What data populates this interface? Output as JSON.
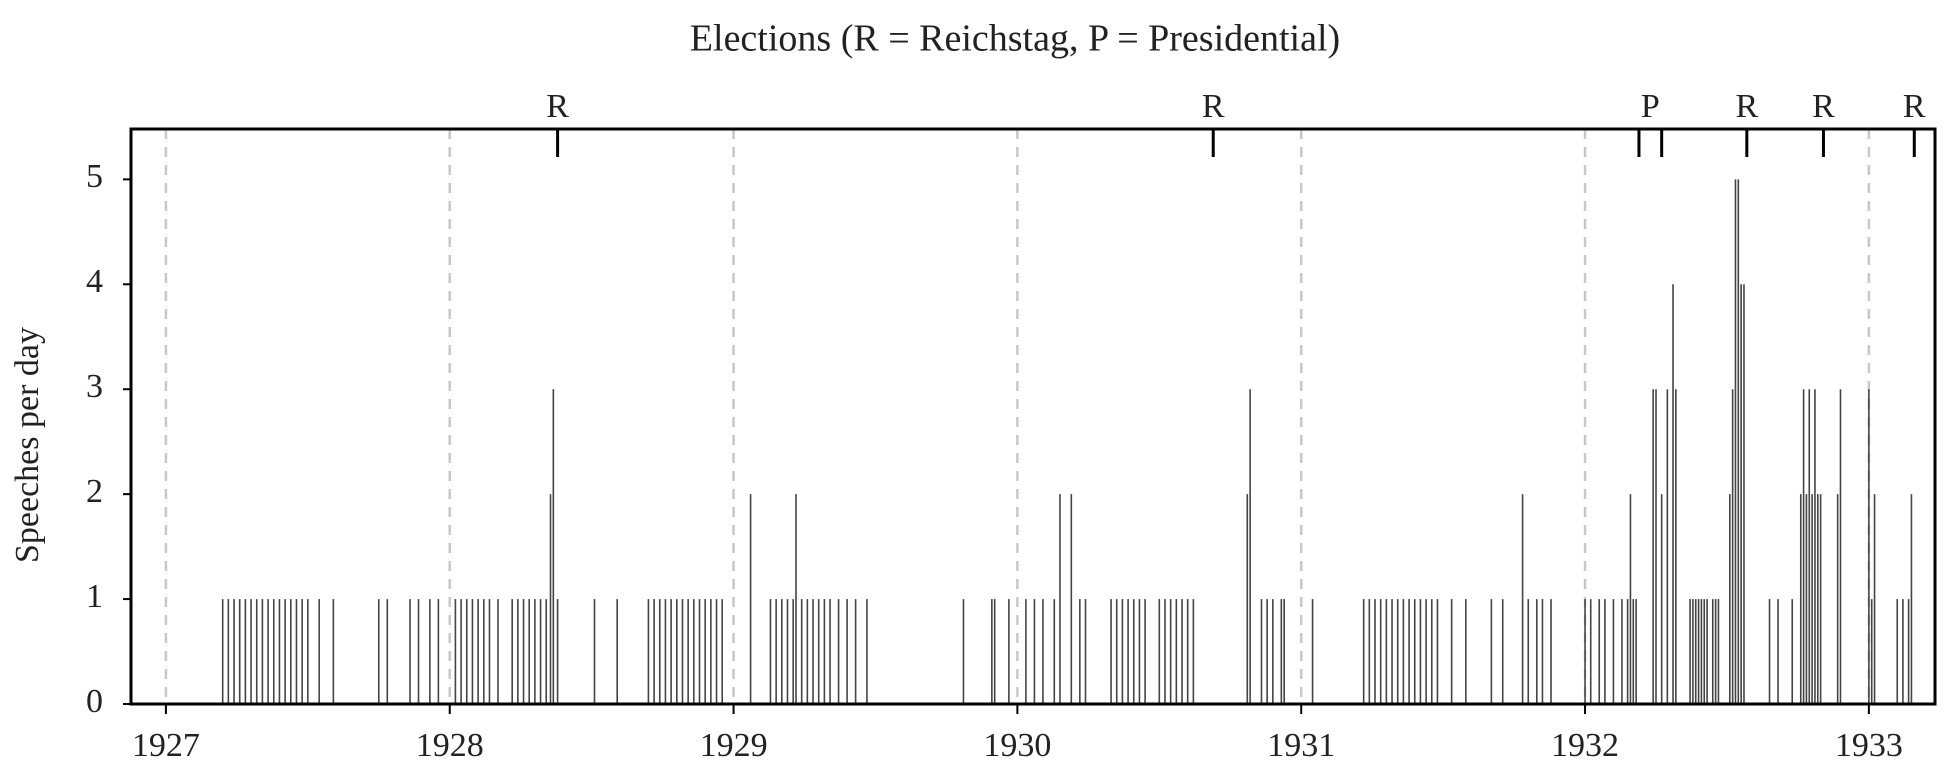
{
  "chart_data": {
    "type": "spike",
    "title": "Elections (R = Reichstag, P = Presidential)",
    "y_label": "Speeches per day",
    "color": "#444444",
    "grid": true,
    "xlim": [
      1926.877,
      1933.233
    ],
    "ylim": [
      0,
      5.48
    ],
    "xticks": [
      1927,
      1928,
      1929,
      1930,
      1931,
      1932,
      1933
    ],
    "yticks": [
      0,
      1,
      2,
      3,
      4,
      5
    ],
    "elections": [
      {
        "label": "R",
        "x": [
          1928.38
        ]
      },
      {
        "label": "R",
        "x": [
          1930.69
        ]
      },
      {
        "label": "P",
        "x": [
          1932.19,
          1932.27
        ]
      },
      {
        "label": "R",
        "x": [
          1932.57
        ]
      },
      {
        "label": "R",
        "x": [
          1932.84
        ]
      },
      {
        "label": "R",
        "x": [
          1933.16
        ]
      }
    ],
    "x": [
      1927.2,
      1927.22,
      1927.24,
      1927.26,
      1927.28,
      1927.3,
      1927.32,
      1927.34,
      1927.36,
      1927.38,
      1927.4,
      1927.42,
      1927.44,
      1927.46,
      1927.48,
      1927.5,
      1927.54,
      1927.59,
      1927.75,
      1927.78,
      1927.86,
      1927.89,
      1927.93,
      1927.96,
      1928.02,
      1928.04,
      1928.06,
      1928.08,
      1928.1,
      1928.12,
      1928.14,
      1928.17,
      1928.22,
      1928.24,
      1928.26,
      1928.28,
      1928.3,
      1928.32,
      1928.34,
      1928.355,
      1928.365,
      1928.38,
      1928.51,
      1928.59,
      1928.7,
      1928.72,
      1928.74,
      1928.76,
      1928.78,
      1928.8,
      1928.82,
      1928.84,
      1928.86,
      1928.88,
      1928.9,
      1928.92,
      1928.94,
      1928.96,
      1929.06,
      1929.13,
      1929.15,
      1929.17,
      1929.19,
      1929.21,
      1929.22,
      1929.24,
      1929.26,
      1929.28,
      1929.3,
      1929.32,
      1929.34,
      1929.37,
      1929.4,
      1929.43,
      1929.47,
      1929.81,
      1929.91,
      1929.92,
      1929.97,
      1930.03,
      1930.06,
      1930.09,
      1930.13,
      1930.15,
      1930.19,
      1930.22,
      1930.24,
      1930.33,
      1930.35,
      1930.37,
      1930.39,
      1930.41,
      1930.43,
      1930.45,
      1930.5,
      1930.52,
      1930.54,
      1930.56,
      1930.58,
      1930.6,
      1930.62,
      1930.81,
      1930.82,
      1930.86,
      1930.88,
      1930.9,
      1930.93,
      1930.94,
      1931.04,
      1931.22,
      1931.24,
      1931.26,
      1931.28,
      1931.3,
      1931.32,
      1931.34,
      1931.36,
      1931.38,
      1931.4,
      1931.42,
      1931.44,
      1931.46,
      1931.48,
      1931.53,
      1931.58,
      1931.67,
      1931.71,
      1931.78,
      1931.8,
      1931.83,
      1931.85,
      1931.88,
      1932,
      1932.02,
      1932.05,
      1932.07,
      1932.1,
      1932.13,
      1932.15,
      1932.16,
      1932.17,
      1932.18,
      1932.24,
      1932.25,
      1932.27,
      1932.29,
      1932.31,
      1932.32,
      1932.37,
      1932.38,
      1932.39,
      1932.4,
      1932.41,
      1932.42,
      1932.43,
      1932.45,
      1932.46,
      1932.47,
      1932.51,
      1932.52,
      1932.53,
      1932.54,
      1932.55,
      1932.56,
      1932.65,
      1932.68,
      1932.73,
      1932.76,
      1932.77,
      1932.78,
      1932.79,
      1932.8,
      1932.81,
      1932.82,
      1932.83,
      1932.89,
      1932.9,
      1933,
      1933.01,
      1933.02,
      1933.1,
      1933.12,
      1933.14,
      1933.15
    ],
    "values": [
      1,
      1,
      1,
      1,
      1,
      1,
      1,
      1,
      1,
      1,
      1,
      1,
      1,
      1,
      1,
      1,
      1,
      1,
      1,
      1,
      1,
      1,
      1,
      1,
      1,
      1,
      1,
      1,
      1,
      1,
      1,
      1,
      1,
      1,
      1,
      1,
      1,
      1,
      1,
      2,
      3,
      1,
      1,
      1,
      1,
      1,
      1,
      1,
      1,
      1,
      1,
      1,
      1,
      1,
      1,
      1,
      1,
      1,
      2,
      1,
      1,
      1,
      1,
      1,
      2,
      1,
      1,
      1,
      1,
      1,
      1,
      1,
      1,
      1,
      1,
      1,
      1,
      1,
      1,
      1,
      1,
      1,
      1,
      2,
      2,
      1,
      1,
      1,
      1,
      1,
      1,
      1,
      1,
      1,
      1,
      1,
      1,
      1,
      1,
      1,
      1,
      2,
      3,
      1,
      1,
      1,
      1,
      1,
      1,
      1,
      1,
      1,
      1,
      1,
      1,
      1,
      1,
      1,
      1,
      1,
      1,
      1,
      1,
      1,
      1,
      1,
      1,
      2,
      1,
      1,
      1,
      1,
      1,
      1,
      1,
      1,
      1,
      1,
      1,
      2,
      1,
      1,
      3,
      3,
      2,
      3,
      4,
      3,
      1,
      1,
      1,
      1,
      1,
      1,
      1,
      1,
      1,
      1,
      2,
      3,
      5,
      5,
      4,
      4,
      1,
      1,
      1,
      2,
      3,
      2,
      3,
      2,
      3,
      2,
      2,
      2,
      3,
      3,
      1,
      2,
      1,
      1,
      1,
      2
    ]
  }
}
